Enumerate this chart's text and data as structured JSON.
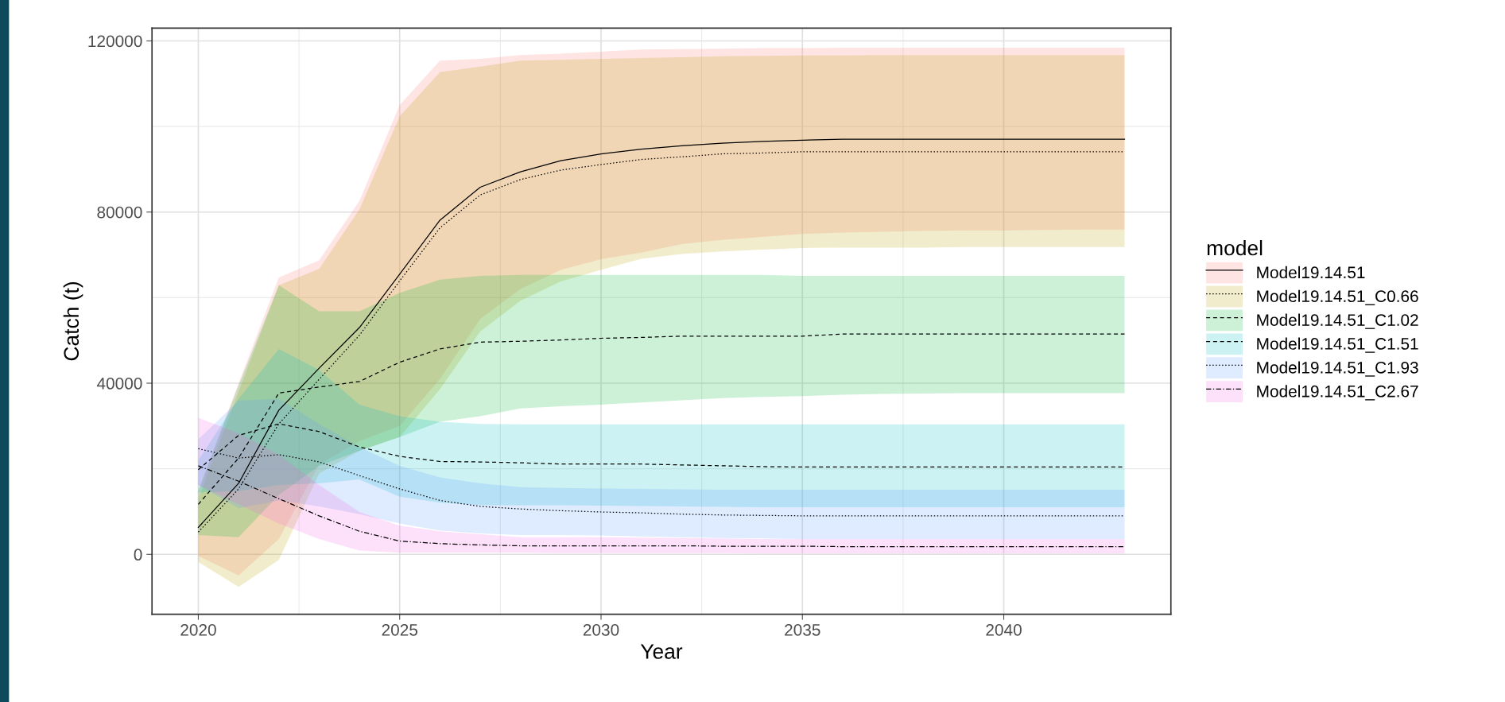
{
  "chart_data": {
    "type": "line",
    "xlabel": "Year",
    "ylabel": "Catch (t)",
    "legend_title": "model",
    "legend": "right",
    "grid": true,
    "x": [
      2020,
      2021,
      2022,
      2023,
      2024,
      2025,
      2026,
      2027,
      2028,
      2029,
      2030,
      2031,
      2032,
      2033,
      2034,
      2035,
      2036,
      2037,
      2038,
      2039,
      2040,
      2041,
      2042,
      2043
    ],
    "xlim": [
      2018.85,
      2044.15
    ],
    "xticks": [
      2020,
      2025,
      2030,
      2035,
      2040
    ],
    "ylim": [
      -14000,
      123000
    ],
    "yticks": [
      0,
      40000,
      80000,
      120000
    ],
    "colors": [
      "#fee4e2",
      "#f1eccc",
      "#ccf1d7",
      "#ccf2f3",
      "#dfebff",
      "#fde0f9"
    ],
    "series": [
      {
        "name": "Model19.14.51",
        "color": "#000000",
        "line_style": "solid",
        "values": [
          6300,
          16600,
          33700,
          43500,
          53000,
          65500,
          78100,
          85800,
          89400,
          92000,
          93600,
          94700,
          95500,
          96100,
          96500,
          96800,
          97000,
          97000,
          97000,
          97000,
          97000,
          97000,
          97000,
          97000
        ],
        "lower": [
          -400,
          -4900,
          3600,
          21000,
          26500,
          30000,
          41000,
          55000,
          62000,
          66500,
          69000,
          70500,
          72500,
          73500,
          74200,
          74900,
          75200,
          75400,
          75600,
          75700,
          75700,
          75800,
          75900,
          75900
        ],
        "upper": [
          15000,
          40000,
          64700,
          68700,
          82600,
          105000,
          115400,
          115800,
          116700,
          117000,
          117500,
          118000,
          118100,
          118200,
          118300,
          118300,
          118400,
          118400,
          118400,
          118400,
          118400,
          118400,
          118400,
          118400
        ]
      },
      {
        "name": "Model19.14.51_C0.66",
        "color": "#000000",
        "line_style": "dotted",
        "values": [
          5200,
          15300,
          30500,
          40900,
          51200,
          63900,
          76300,
          84000,
          87600,
          89800,
          91100,
          92300,
          92900,
          93600,
          93800,
          94100,
          94100,
          94100,
          94100,
          94100,
          94100,
          94100,
          94100,
          94100
        ],
        "lower": [
          -1800,
          -7600,
          -1300,
          18900,
          24200,
          27400,
          38600,
          52100,
          59300,
          63800,
          66500,
          69100,
          70200,
          70800,
          71200,
          71600,
          71700,
          71700,
          71700,
          71800,
          71800,
          71800,
          71800,
          71800
        ],
        "upper": [
          13000,
          38000,
          62900,
          66700,
          80600,
          102400,
          112700,
          114000,
          115400,
          115600,
          115800,
          116000,
          116200,
          116400,
          116500,
          116600,
          116600,
          116700,
          116700,
          116700,
          116700,
          116700,
          116700,
          116700
        ]
      },
      {
        "name": "Model19.14.51_C1.02",
        "color": "#000000",
        "line_style": "dashed",
        "values": [
          11700,
          22500,
          37700,
          39100,
          40400,
          44900,
          48000,
          49600,
          49800,
          50100,
          50500,
          50700,
          51000,
          51000,
          51000,
          51000,
          51500,
          51500,
          51500,
          51500,
          51500,
          51500,
          51500,
          51500
        ],
        "lower": [
          4500,
          4000,
          13900,
          20700,
          24200,
          27400,
          31000,
          32300,
          34100,
          34600,
          35000,
          35500,
          36000,
          36500,
          36800,
          37000,
          37300,
          37500,
          37600,
          37700,
          37700,
          37700,
          37700,
          37700
        ],
        "upper": [
          14800,
          39500,
          62900,
          56800,
          56800,
          61100,
          64200,
          65100,
          65300,
          65300,
          65300,
          65300,
          65300,
          65300,
          65300,
          65100,
          65100,
          65100,
          65100,
          65100,
          65100,
          65100,
          65100,
          65100
        ]
      },
      {
        "name": "Model19.14.51_C1.51",
        "color": "#000000",
        "line_style": "dashed",
        "values": [
          19800,
          27800,
          30500,
          28700,
          25100,
          22900,
          21700,
          21600,
          21400,
          21100,
          21100,
          21100,
          20900,
          20700,
          20500,
          20400,
          20400,
          20400,
          20400,
          20400,
          20400,
          20400,
          20400,
          20400
        ],
        "lower": [
          14400,
          14800,
          16200,
          16600,
          17500,
          13500,
          12100,
          11500,
          11500,
          11500,
          11400,
          11300,
          11200,
          11100,
          11000,
          11000,
          11000,
          11000,
          11000,
          11000,
          11000,
          11000,
          11000,
          11000
        ],
        "upper": [
          22000,
          36400,
          48000,
          43100,
          35000,
          32300,
          31000,
          30500,
          30400,
          30400,
          30400,
          30400,
          30400,
          30400,
          30400,
          30400,
          30400,
          30400,
          30400,
          30400,
          30400,
          30400,
          30400,
          30400
        ]
      },
      {
        "name": "Model19.14.51_C1.93",
        "color": "#000000",
        "line_style": "dotted",
        "values": [
          24700,
          22500,
          23300,
          21600,
          18400,
          15300,
          12600,
          11200,
          10600,
          10200,
          9900,
          9700,
          9400,
          9200,
          9100,
          9000,
          9000,
          9000,
          9000,
          9000,
          9000,
          9000,
          9000,
          9000
        ],
        "lower": [
          16200,
          10800,
          12600,
          11200,
          9400,
          7200,
          5600,
          4900,
          4500,
          4500,
          4400,
          4200,
          4000,
          3800,
          3700,
          3600,
          3600,
          3600,
          3600,
          3600,
          3600,
          3600,
          3600,
          3600
        ],
        "upper": [
          26900,
          35900,
          36400,
          30500,
          25100,
          20700,
          18000,
          16600,
          15700,
          15500,
          15400,
          15300,
          15200,
          15100,
          15100,
          15100,
          15100,
          15100,
          15100,
          15100,
          15100,
          15100,
          15100,
          15100
        ]
      },
      {
        "name": "Model19.14.51_C2.67",
        "color": "#000000",
        "line_style": "dashdot",
        "values": [
          20700,
          17100,
          13000,
          9000,
          5400,
          3100,
          2500,
          2200,
          2000,
          2000,
          2000,
          2000,
          2000,
          1900,
          1900,
          1900,
          1800,
          1800,
          1800,
          1800,
          1800,
          1800,
          1800,
          1800
        ],
        "lower": [
          16200,
          11700,
          7200,
          3600,
          900,
          400,
          400,
          400,
          400,
          300,
          300,
          300,
          300,
          300,
          200,
          200,
          200,
          200,
          200,
          200,
          200,
          200,
          200,
          200
        ],
        "upper": [
          31900,
          28300,
          23300,
          16200,
          9900,
          6700,
          5400,
          4700,
          4000,
          4000,
          4000,
          3900,
          3800,
          3700,
          3600,
          3600,
          3600,
          3600,
          3600,
          3600,
          3600,
          3600,
          3600,
          3600
        ]
      }
    ]
  }
}
